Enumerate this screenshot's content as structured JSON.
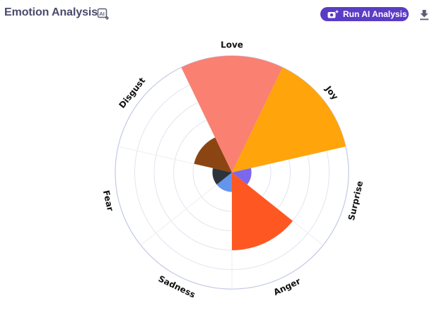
{
  "header": {
    "title": "Emotion Analysis",
    "ai_icon": "ai-sparkle-icon",
    "run_button": {
      "label": "Run AI Analysis",
      "icon": "camera-sparkle-icon",
      "color": "#5b3cc4"
    },
    "download_icon": "download-icon"
  },
  "colors": {
    "title": "#4b4a6b",
    "grid_ring": "#e2e4f0",
    "outer_ring": "#c3c9e6",
    "spoke": "#eeeeee"
  },
  "chart_data": {
    "type": "polar-bar",
    "title": "Emotion Analysis",
    "categories": [
      "Love",
      "Joy",
      "Surprise",
      "Anger",
      "Sadness",
      "Fear",
      "Disgust"
    ],
    "values": [
      6,
      6,
      1,
      4,
      1,
      1,
      2
    ],
    "colors": [
      "#fa8072",
      "#ffa40a",
      "#7b68ee",
      "#ff5722",
      "#6495ed",
      "#2d3439",
      "#8b4513"
    ],
    "rmax": 6,
    "ring_count": 6,
    "grid": true,
    "legend": "none",
    "start_angle_deg": -25.714
  }
}
